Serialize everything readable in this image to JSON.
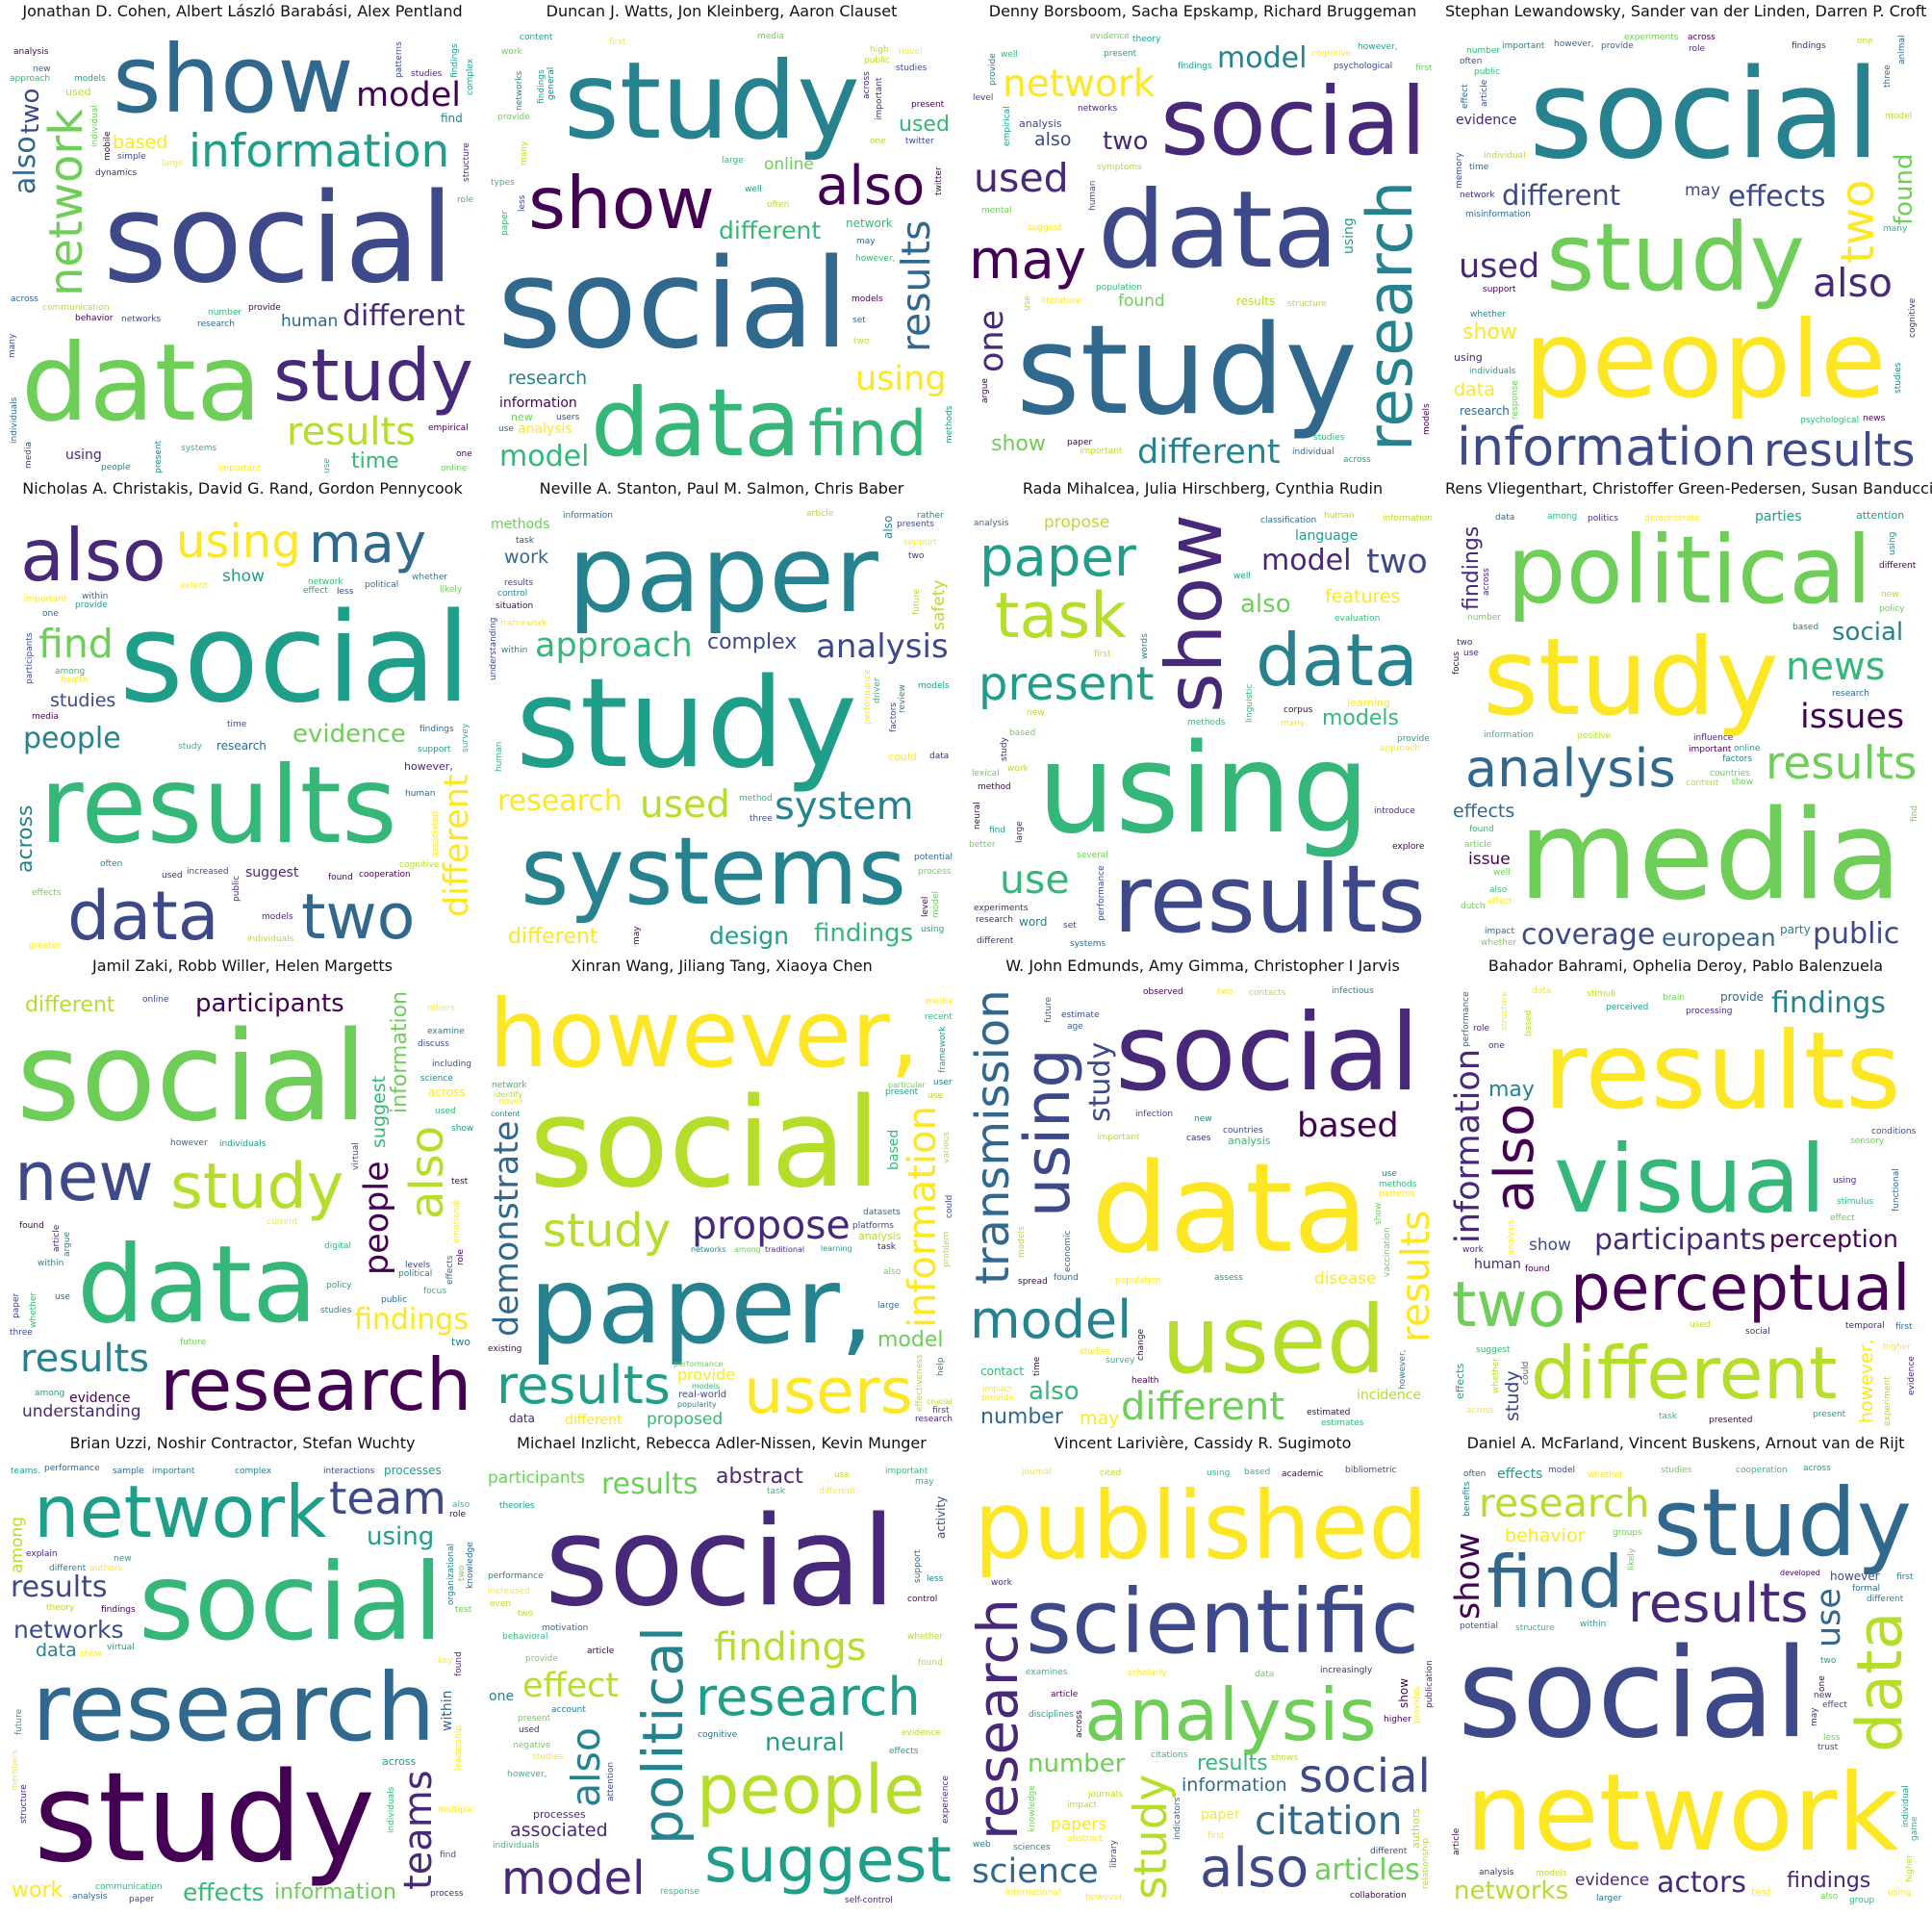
{
  "palette": [
    "#440154",
    "#482878",
    "#3e4989",
    "#31688e",
    "#26828e",
    "#1f9e89",
    "#35b779",
    "#6ece58",
    "#b5de2b",
    "#fde725"
  ],
  "panels": [
    {
      "title": "Jonathan D. Cohen, Albert László Barabási, Alex Pentland",
      "words": [
        "social",
        "data",
        "show",
        "study",
        "information",
        "results",
        "network",
        "different",
        "model",
        "also",
        "two",
        "time",
        "based",
        "human",
        "using",
        "find",
        "used",
        "new",
        "findings",
        "use",
        "present",
        "research",
        "behavior",
        "networks",
        "patterns",
        "complex",
        "dynamics",
        "analysis",
        "approach",
        "models",
        "large",
        "people",
        "online",
        "structure",
        "number",
        "individual",
        "communication",
        "individuals",
        "provide",
        "important",
        "across",
        "one",
        "many",
        "systems",
        "media",
        "empirical",
        "mobile",
        "simple",
        "studies",
        "role"
      ]
    },
    {
      "title": "Duncan J. Watts, Jon Kleinberg, Aaron Clauset",
      "words": [
        "social",
        "study",
        "data",
        "show",
        "find",
        "also",
        "using",
        "results",
        "different",
        "model",
        "research",
        "used",
        "information",
        "online",
        "analysis",
        "network",
        "new",
        "well",
        "large",
        "two",
        "one",
        "however,",
        "provide",
        "work",
        "findings",
        "use",
        "present",
        "networks",
        "models",
        "across",
        "may",
        "important",
        "users",
        "often",
        "many",
        "high",
        "set",
        "media",
        "twitter",
        "methods",
        "paper",
        "twitter",
        "first",
        "less",
        "studies",
        "general",
        "types",
        "public",
        "content",
        "novel"
      ]
    },
    {
      "title": "Denny Borsboom, Sacha Epskamp, Richard Bruggeman",
      "words": [
        "study",
        "data",
        "social",
        "network",
        "research",
        "may",
        "different",
        "used",
        "one",
        "model",
        "two",
        "show",
        "also",
        "found",
        "using",
        "results",
        "analysis",
        "structure",
        "studies",
        "provide",
        "mental",
        "networks",
        "well",
        "use",
        "however,",
        "present",
        "human",
        "first",
        "suggest",
        "theory",
        "evidence",
        "empirical",
        "paper",
        "models",
        "findings",
        "literature",
        "important",
        "symptoms",
        "psychological",
        "across",
        "individual",
        "cognitive",
        "population",
        "argue",
        "level"
      ]
    },
    {
      "title": "Stephan Lewandowsky, Sander van der Linden, Darren P. Croft",
      "words": [
        "social",
        "people",
        "study",
        "information",
        "results",
        "different",
        "two",
        "also",
        "used",
        "effects",
        "found",
        "show",
        "data",
        "may",
        "evidence",
        "research",
        "using",
        "findings",
        "memory",
        "individuals",
        "whether",
        "across",
        "model",
        "effect",
        "experiments",
        "misinformation",
        "public",
        "psychological",
        "time",
        "provide",
        "support",
        "individual",
        "studies",
        "cognitive",
        "important",
        "news",
        "role",
        "article",
        "however,",
        "one",
        "often",
        "animal",
        "three",
        "many",
        "number",
        "network",
        "response"
      ]
    },
    {
      "title": "Nicholas A. Christakis, David G. Rand, Gordon Pennycook",
      "words": [
        "social",
        "results",
        "data",
        "also",
        "two",
        "may",
        "using",
        "find",
        "different",
        "people",
        "evidence",
        "across",
        "studies",
        "show",
        "suggest",
        "research",
        "however,",
        "whether",
        "associated",
        "participants",
        "findings",
        "among",
        "network",
        "human",
        "used",
        "one",
        "time",
        "study",
        "cooperation",
        "provide",
        "important",
        "found",
        "public",
        "effects",
        "cognitive",
        "health",
        "increased",
        "likely",
        "individuals",
        "media",
        "political",
        "models",
        "support",
        "less",
        "greater",
        "survey",
        "often",
        "within",
        "extent",
        "effect"
      ]
    },
    {
      "title": "Neville A. Stanton, Paul M. Salmon, Chris Baber",
      "words": [
        "study",
        "paper",
        "systems",
        "used",
        "analysis",
        "system",
        "approach",
        "research",
        "design",
        "different",
        "findings",
        "complex",
        "work",
        "safety",
        "methods",
        "also",
        "could",
        "results",
        "using",
        "data",
        "performance",
        "factors",
        "support",
        "level",
        "model",
        "may",
        "within",
        "human",
        "two",
        "article",
        "control",
        "understanding",
        "situation",
        "potential",
        "future",
        "three",
        "models",
        "process",
        "method",
        "driver",
        "information",
        "presents",
        "task",
        "framework",
        "review",
        "rather"
      ]
    },
    {
      "title": "Rada Mihalcea, Julia Hirschberg, Cynthia Rudin",
      "words": [
        "using",
        "show",
        "results",
        "data",
        "task",
        "paper",
        "present",
        "use",
        "two",
        "model",
        "also",
        "models",
        "features",
        "propose",
        "language",
        "word",
        "learning",
        "information",
        "different",
        "analysis",
        "based",
        "new",
        "find",
        "study",
        "work",
        "first",
        "approach",
        "method",
        "experiments",
        "set",
        "systems",
        "well",
        "neural",
        "human",
        "many",
        "methods",
        "lexical",
        "research",
        "explore",
        "large",
        "better",
        "evaluation",
        "provide",
        "linguistic",
        "performance",
        "several",
        "classification",
        "words",
        "introduce",
        "corpus"
      ]
    },
    {
      "title": "Rens Vliegenthart, Christoffer Green-Pedersen, Susan Banducci",
      "words": [
        "media",
        "study",
        "political",
        "analysis",
        "results",
        "news",
        "european",
        "coverage",
        "issues",
        "public",
        "social",
        "findings",
        "effects",
        "issue",
        "parties",
        "party",
        "attention",
        "article",
        "different",
        "based",
        "data",
        "online",
        "find",
        "research",
        "using",
        "show",
        "influence",
        "impact",
        "whether",
        "factors",
        "content",
        "information",
        "important",
        "positive",
        "also",
        "dutch",
        "demonstrate",
        "found",
        "two",
        "across",
        "new",
        "among",
        "use",
        "well",
        "number",
        "effect",
        "policy",
        "countries",
        "politics",
        "focus"
      ]
    },
    {
      "title": "Jamil Zaki, Robb Willer, Helen Margetts",
      "words": [
        "social",
        "data",
        "new",
        "research",
        "study",
        "results",
        "also",
        "findings",
        "people",
        "information",
        "participants",
        "different",
        "suggest",
        "understanding",
        "evidence",
        "across",
        "two",
        "political",
        "online",
        "article",
        "studies",
        "individuals",
        "public",
        "future",
        "effects",
        "found",
        "show",
        "whether",
        "three",
        "however",
        "others",
        "including",
        "use",
        "within",
        "digital",
        "policy",
        "paper",
        "science",
        "virtual",
        "levels",
        "focus",
        "test",
        "examine",
        "argue",
        "role",
        "emotional",
        "among",
        "used",
        "current",
        "discuss"
      ]
    },
    {
      "title": "Xinran Wang, Jiliang Tang, Xiaoya Chen",
      "words": [
        "social",
        "paper,",
        "however,",
        "results",
        "users",
        "information",
        "study",
        "propose",
        "demonstrate",
        "model",
        "different",
        "provide",
        "real-world",
        "proposed",
        "based",
        "data",
        "analysis",
        "also",
        "novel",
        "present",
        "existing",
        "framework",
        "effectiveness",
        "use",
        "media",
        "datasets",
        "user",
        "networks",
        "network",
        "performance",
        "popularity",
        "research",
        "platforms",
        "learning",
        "models",
        "traditional",
        "recent",
        "content",
        "task",
        "large",
        "help",
        "identify",
        "first",
        "crucial",
        "among",
        "particular",
        "could",
        "significant",
        "various",
        "problem"
      ]
    },
    {
      "title": "W. John Edmunds, Amy Gimma, Christopher I Jarvis",
      "words": [
        "data",
        "social",
        "used",
        "model",
        "using",
        "different",
        "transmission",
        "results",
        "based",
        "study",
        "also",
        "number",
        "may",
        "disease",
        "incidence",
        "contact",
        "analysis",
        "age",
        "estimate",
        "health",
        "use",
        "impact",
        "however,",
        "infection",
        "estimates",
        "time",
        "two",
        "countries",
        "provide",
        "population",
        "models",
        "studies",
        "contacts",
        "spread",
        "methods",
        "observed",
        "new",
        "cases",
        "estimated",
        "important",
        "vaccination",
        "economic",
        "change",
        "infectious",
        "found",
        "future",
        "patterns",
        "show",
        "survey",
        "assess"
      ]
    },
    {
      "title": "Bahador Bahrami, Ophelia Deroy, Pablo Balenzuela",
      "words": [
        "perceptual",
        "results",
        "visual",
        "different",
        "two",
        "also",
        "information",
        "findings",
        "perception",
        "participants",
        "however,",
        "may",
        "study",
        "show",
        "human",
        "provide",
        "effects",
        "effect",
        "brain",
        "temporal",
        "using",
        "found",
        "sensory",
        "whether",
        "social",
        "functional",
        "stimuli",
        "evidence",
        "work",
        "analysis",
        "could",
        "one",
        "used",
        "task",
        "present",
        "based",
        "data",
        "across",
        "structure",
        "role",
        "processing",
        "presented",
        "stimulus",
        "conditions",
        "experiment",
        "perceived",
        "performance",
        "suggest",
        "higher",
        "first"
      ]
    },
    {
      "title": "Brian Uzzi, Noshir Contractor, Stefan Wuchty",
      "words": [
        "study",
        "social",
        "research",
        "network",
        "team",
        "teams",
        "networks",
        "results",
        "effects",
        "work",
        "using",
        "information",
        "data",
        "among",
        "within",
        "processes",
        "across",
        "performance",
        "two",
        "also",
        "communication",
        "knowledge",
        "theory",
        "new",
        "structure",
        "find",
        "findings",
        "found",
        "important",
        "key",
        "leadership",
        "different",
        "future",
        "complex",
        "explain",
        "interactions",
        "organizational",
        "teams.",
        "members",
        "authors",
        "sample",
        "test",
        "show",
        "process",
        "virtual",
        "individuals",
        "paper",
        "analysis",
        "multiple",
        "role"
      ]
    },
    {
      "title": "Michael Inzlicht, Rebecca Adler-Nissen, Kevin Munger",
      "words": [
        "social",
        "political",
        "people",
        "research",
        "suggest",
        "findings",
        "model",
        "also",
        "effect",
        "results",
        "neural",
        "abstract",
        "associated",
        "participants",
        "one",
        "activity",
        "processes",
        "cognitive",
        "article",
        "two",
        "found",
        "evidence",
        "behavioral",
        "effects",
        "account",
        "increased",
        "use",
        "task",
        "individuals",
        "may",
        "provide",
        "used",
        "theories",
        "experience",
        "control",
        "self-control",
        "support",
        "response",
        "important",
        "whether",
        "less",
        "even",
        "negative",
        "motivation",
        "studies",
        "present",
        "however,",
        "different",
        "attention",
        "performance"
      ]
    },
    {
      "title": "Vincent Larivière, Cassidy R. Sugimoto",
      "words": [
        "scientific",
        "research",
        "published",
        "analysis",
        "study",
        "also",
        "social",
        "citation",
        "science",
        "articles",
        "number",
        "results",
        "information",
        "papers",
        "paper",
        "show",
        "authors",
        "cited",
        "journals",
        "disciplines",
        "impact",
        "data",
        "article",
        "citations",
        "bibliometric",
        "collaboration",
        "indicators",
        "web",
        "shows",
        "work",
        "across",
        "first",
        "however,",
        "sciences",
        "knowledge",
        "library",
        "abstract",
        "using",
        "based",
        "higher",
        "publication",
        "provides",
        "scholarly",
        "different",
        "increasingly",
        "examines",
        "relationship",
        "international",
        "academic",
        "journal"
      ]
    },
    {
      "title": "Daniel A. McFarland, Vincent Buskens, Arnout van de Rijt",
      "words": [
        "social",
        "network",
        "study",
        "find",
        "data",
        "results",
        "show",
        "research",
        "use",
        "actors",
        "networks",
        "findings",
        "behavior",
        "evidence",
        "effects",
        "however",
        "test",
        "often",
        "different",
        "trust",
        "one",
        "two",
        "article",
        "models",
        "also",
        "across",
        "within",
        "whether",
        "first",
        "using",
        "group",
        "groups",
        "game",
        "new",
        "may",
        "less",
        "individual",
        "benefits",
        "effect",
        "structure",
        "model",
        "cooperation",
        "likely",
        "higher",
        "analysis",
        "larger",
        "formal",
        "developed",
        "studies",
        "potential"
      ]
    }
  ]
}
